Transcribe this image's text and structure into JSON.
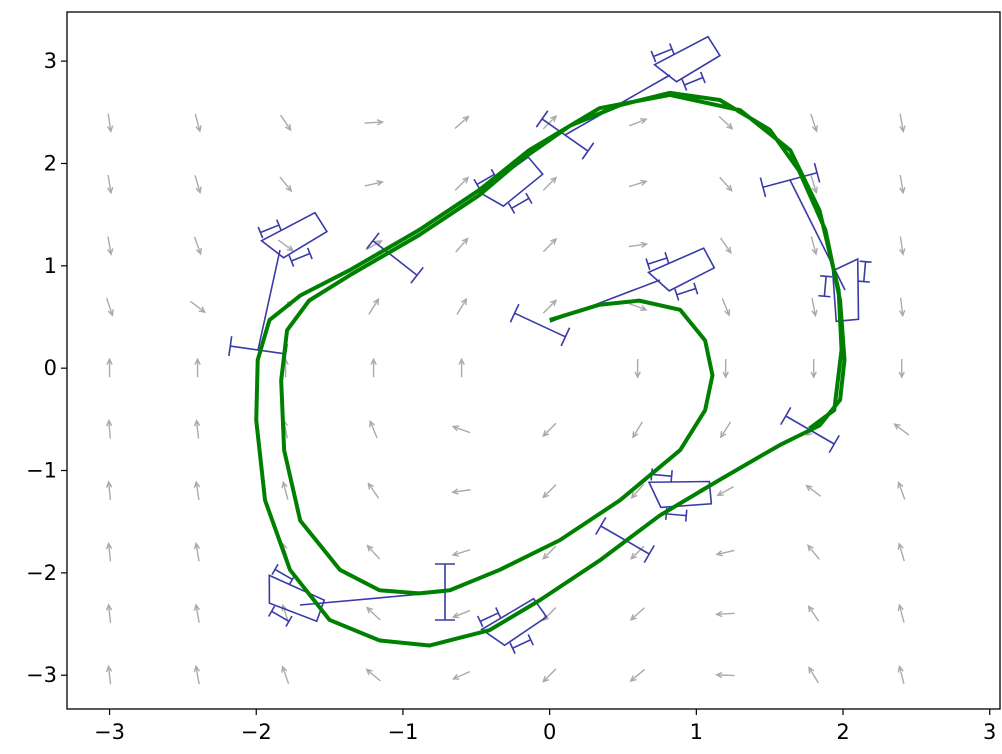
{
  "chart_data": {
    "type": "quiver",
    "xlim": [
      -3.29,
      3.07
    ],
    "ylim": [
      -3.33,
      3.48
    ],
    "xticks": [
      {
        "value": -3,
        "label": "−3"
      },
      {
        "value": -2,
        "label": "−2"
      },
      {
        "value": -1,
        "label": "−1"
      },
      0,
      1,
      2,
      3
    ],
    "yticks": [
      {
        "value": -3,
        "label": "−3"
      },
      {
        "value": -2,
        "label": "−2"
      },
      {
        "value": -1,
        "label": "−1"
      },
      0,
      1,
      2,
      3
    ],
    "quiver": {
      "color": "#aaaaaa",
      "x": [
        -3,
        -2.4,
        -1.8,
        -1.2,
        -0.6,
        0,
        0.6,
        1.2,
        1.8,
        2.4
      ],
      "y": [
        -3,
        -2.4,
        -1.8,
        -1.2,
        -0.6,
        0,
        0.6,
        1.2,
        1.8,
        2.4
      ],
      "u": [
        [
          -3,
          -3,
          -3,
          -3,
          -3,
          -3,
          -3,
          -3,
          -3,
          -3
        ],
        [
          -2.4,
          -2.4,
          -2.4,
          -2.4,
          -2.4,
          -2.4,
          -2.4,
          -2.4,
          -2.4,
          -2.4
        ],
        [
          -1.8,
          -1.8,
          -1.8,
          -1.8,
          -1.8,
          -1.8,
          -1.8,
          -1.8,
          -1.8,
          -1.8
        ],
        [
          -1.2,
          -1.2,
          -1.2,
          -1.2,
          -1.2,
          -1.2,
          -1.2,
          -1.2,
          -1.2,
          -1.2
        ],
        [
          -0.6,
          -0.6,
          -0.6,
          -0.6,
          -0.6,
          -0.6,
          -0.6,
          -0.6,
          -0.6,
          -0.6
        ],
        [
          0,
          0,
          0,
          0,
          0,
          0,
          0,
          0,
          0,
          0
        ],
        [
          0.6,
          0.6,
          0.6,
          0.6,
          0.6,
          0.6,
          0.6,
          0.6,
          0.6,
          0.6
        ],
        [
          1.2,
          1.2,
          1.2,
          1.2,
          1.2,
          1.2,
          1.2,
          1.2,
          1.2,
          1.2
        ],
        [
          1.8,
          1.8,
          1.8,
          1.8,
          1.8,
          1.8,
          1.8,
          1.8,
          1.8,
          1.8
        ],
        [
          2.4,
          2.4,
          2.4,
          2.4,
          2.4,
          2.4,
          2.4,
          2.4,
          2.4,
          2.4
        ]
      ],
      "v": [
        [
          27,
          16.68,
          8.52,
          2.52,
          -1.32,
          -3,
          -2.52,
          0.12,
          4.92,
          11.88
        ],
        [
          22.2,
          13.824,
          7.176,
          2.256,
          -0.936,
          -2.4,
          -2.136,
          -0.144,
          3.576,
          9.024
        ],
        [
          17.4,
          10.968,
          5.832,
          1.992,
          -0.552,
          -1.8,
          -1.752,
          -0.408,
          2.232,
          6.168
        ],
        [
          12.6,
          8.112,
          4.488,
          1.728,
          -0.168,
          -1.2,
          -1.368,
          -0.672,
          0.888,
          3.312
        ],
        [
          7.8,
          5.256,
          3.144,
          1.464,
          0.216,
          -0.6,
          -0.984,
          -0.936,
          -0.456,
          0.456
        ],
        [
          3,
          2.4,
          1.8,
          1.2,
          0.6,
          0,
          -0.6,
          -1.2,
          -1.8,
          -2.4
        ],
        [
          -1.8,
          -0.456,
          0.456,
          0.936,
          0.984,
          0.6,
          -0.216,
          -1.464,
          -3.144,
          -5.256
        ],
        [
          -6.6,
          -3.312,
          -0.888,
          0.672,
          1.368,
          1.2,
          0.168,
          -1.728,
          -4.488,
          -8.112
        ],
        [
          -11.4,
          -6.168,
          -2.232,
          0.408,
          1.752,
          1.8,
          0.552,
          -1.992,
          -5.832,
          -10.968
        ],
        [
          -16.2,
          -9.024,
          -3.576,
          0.144,
          2.136,
          2.4,
          0.936,
          -2.256,
          -7.176,
          -13.824
        ]
      ]
    },
    "trajectory": {
      "color": "#008000",
      "x": [
        0,
        0.34,
        0.61,
        0.89,
        1.06,
        1.11,
        1.06,
        0.89,
        0.48,
        0.07,
        -0.34,
        -0.68,
        -0.89,
        -1.16,
        -1.43,
        -1.7,
        -1.81,
        -1.83,
        -1.79,
        -1.64,
        -1.36,
        -0.89,
        -0.48,
        -0.2,
        0.14,
        0.48,
        0.82,
        1.16,
        1.5,
        1.7,
        1.88,
        1.98,
        2.01,
        1.98,
        1.84,
        1.57,
        1.16,
        0.75,
        0.34,
        -0.07,
        -0.41,
        -0.82,
        -1.16,
        -1.5,
        -1.77,
        -1.94,
        -2.0,
        -1.99,
        -1.91,
        -1.7,
        -1.36,
        -0.89,
        -0.48,
        -0.14,
        0.34,
        0.82,
        1.3,
        1.64,
        1.84,
        1.97,
        1.99,
        1.94,
        1.77
      ],
      "y": [
        0.47,
        0.62,
        0.66,
        0.57,
        0.27,
        -0.07,
        -0.41,
        -0.8,
        -1.29,
        -1.68,
        -1.97,
        -2.17,
        -2.2,
        -2.17,
        -1.97,
        -1.49,
        -0.8,
        -0.12,
        0.37,
        0.66,
        0.91,
        1.3,
        1.69,
        2.03,
        2.37,
        2.57,
        2.69,
        2.62,
        2.33,
        1.93,
        1.35,
        0.66,
        0.08,
        -0.31,
        -0.56,
        -0.75,
        -1.09,
        -1.44,
        -1.88,
        -2.27,
        -2.56,
        -2.71,
        -2.66,
        -2.46,
        -1.97,
        -1.29,
        -0.51,
        0.08,
        0.47,
        0.71,
        0.96,
        1.35,
        1.74,
        2.13,
        2.54,
        2.67,
        2.52,
        2.13,
        1.54,
        0.76,
        0.18,
        -0.41,
        -0.59
      ]
    }
  }
}
